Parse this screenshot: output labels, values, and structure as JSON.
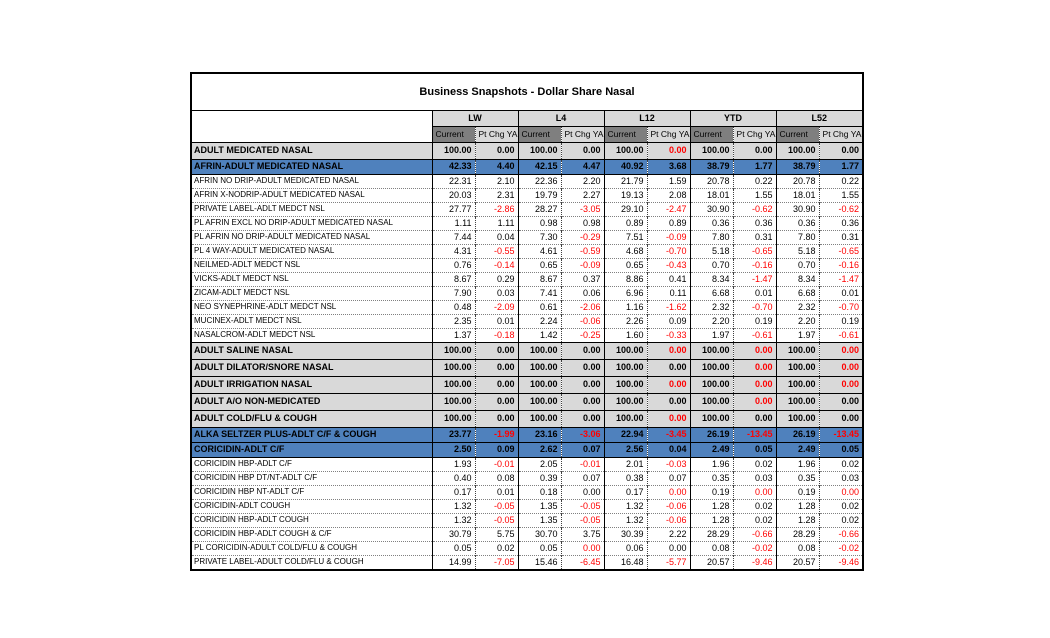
{
  "title": "Business Snapshots - Dollar Share Nasal",
  "periods": [
    "LW",
    "L4",
    "L12",
    "YTD",
    "L52"
  ],
  "subheaders": {
    "current": "Current",
    "ptchg": "Pt Chg YA"
  },
  "colors": {
    "highlight_row": "#4f81bd",
    "section_row": "#d9d9d9",
    "header_group_bg": "#d9d9d9",
    "header_current_bg": "#7f7f7f",
    "negative": "#ff0000"
  },
  "rows": [
    {
      "label": "ADULT MEDICATED NASAL",
      "style": "section",
      "values": [
        "100.00",
        "0.00",
        "100.00",
        "0.00",
        "100.00",
        "0.00",
        "100.00",
        "0.00",
        "100.00",
        "0.00"
      ],
      "red": [
        5
      ]
    },
    {
      "label": "AFRIN-ADULT MEDICATED NASAL",
      "style": "highlight",
      "values": [
        "42.33",
        "4.40",
        "42.15",
        "4.47",
        "40.92",
        "3.68",
        "38.79",
        "1.77",
        "38.79",
        "1.77"
      ],
      "red": []
    },
    {
      "label": "AFRIN NO DRIP-ADULT MEDICATED NASAL",
      "style": "normal",
      "values": [
        "22.31",
        "2.10",
        "22.36",
        "2.20",
        "21.79",
        "1.59",
        "20.78",
        "0.22",
        "20.78",
        "0.22"
      ],
      "red": []
    },
    {
      "label": "AFRIN X-NODRIP-ADULT MEDICATED NASAL",
      "style": "normal",
      "values": [
        "20.03",
        "2.31",
        "19.79",
        "2.27",
        "19.13",
        "2.08",
        "18.01",
        "1.55",
        "18.01",
        "1.55"
      ],
      "red": []
    },
    {
      "label": "PRIVATE LABEL-ADLT MEDCT NSL",
      "style": "normal",
      "values": [
        "27.77",
        "-2.86",
        "28.27",
        "-3.05",
        "29.10",
        "-2.47",
        "30.90",
        "-0.62",
        "30.90",
        "-0.62"
      ],
      "red": [
        1,
        3,
        5,
        7,
        9
      ]
    },
    {
      "label": "PL AFRIN EXCL NO DRIP-ADULT MEDICATED NASAL",
      "style": "normal",
      "values": [
        "1.11",
        "1.11",
        "0.98",
        "0.98",
        "0.89",
        "0.89",
        "0.36",
        "0.36",
        "0.36",
        "0.36"
      ],
      "red": []
    },
    {
      "label": "PL AFRIN NO DRIP-ADULT MEDICATED NASAL",
      "style": "normal",
      "values": [
        "7.44",
        "0.04",
        "7.30",
        "-0.29",
        "7.51",
        "-0.09",
        "7.80",
        "0.31",
        "7.80",
        "0.31"
      ],
      "red": [
        3,
        5
      ]
    },
    {
      "label": "PL 4 WAY-ADULT MEDICATED NASAL",
      "style": "normal",
      "values": [
        "4.31",
        "-0.55",
        "4.61",
        "-0.59",
        "4.68",
        "-0.70",
        "5.18",
        "-0.65",
        "5.18",
        "-0.65"
      ],
      "red": [
        1,
        3,
        5,
        7,
        9
      ]
    },
    {
      "label": "NEILMED-ADLT MEDCT NSL",
      "style": "normal",
      "values": [
        "0.76",
        "-0.14",
        "0.65",
        "-0.09",
        "0.65",
        "-0.43",
        "0.70",
        "-0.16",
        "0.70",
        "-0.16"
      ],
      "red": [
        1,
        3,
        5,
        7,
        9
      ]
    },
    {
      "label": "VICKS-ADLT MEDCT NSL",
      "style": "normal",
      "values": [
        "8.67",
        "0.29",
        "8.67",
        "0.37",
        "8.86",
        "0.41",
        "8.34",
        "-1.47",
        "8.34",
        "-1.47"
      ],
      "red": [
        7,
        9
      ]
    },
    {
      "label": "ZICAM-ADLT MEDCT NSL",
      "style": "normal",
      "values": [
        "7.90",
        "0.03",
        "7.41",
        "0.06",
        "6.96",
        "0.11",
        "6.68",
        "0.01",
        "6.68",
        "0.01"
      ],
      "red": []
    },
    {
      "label": "NEO SYNEPHRINE-ADLT MEDCT NSL",
      "style": "normal",
      "values": [
        "0.48",
        "-2.09",
        "0.61",
        "-2.06",
        "1.16",
        "-1.62",
        "2.32",
        "-0.70",
        "2.32",
        "-0.70"
      ],
      "red": [
        1,
        3,
        5,
        7,
        9
      ]
    },
    {
      "label": "MUCINEX-ADLT MEDCT NSL",
      "style": "normal",
      "values": [
        "2.35",
        "0.01",
        "2.24",
        "-0.06",
        "2.26",
        "0.09",
        "2.20",
        "0.19",
        "2.20",
        "0.19"
      ],
      "red": [
        3
      ]
    },
    {
      "label": "NASALCROM-ADLT MEDCT NSL",
      "style": "normal",
      "values": [
        "1.37",
        "-0.18",
        "1.42",
        "-0.25",
        "1.60",
        "-0.33",
        "1.97",
        "-0.61",
        "1.97",
        "-0.61"
      ],
      "red": [
        1,
        3,
        5,
        7,
        9
      ]
    },
    {
      "label": "ADULT SALINE NASAL",
      "style": "section",
      "values": [
        "100.00",
        "0.00",
        "100.00",
        "0.00",
        "100.00",
        "0.00",
        "100.00",
        "0.00",
        "100.00",
        "0.00"
      ],
      "red": [
        5,
        7,
        9
      ]
    },
    {
      "label": "ADULT DILATOR/SNORE NASAL",
      "style": "section",
      "values": [
        "100.00",
        "0.00",
        "100.00",
        "0.00",
        "100.00",
        "0.00",
        "100.00",
        "0.00",
        "100.00",
        "0.00"
      ],
      "red": [
        7,
        9
      ]
    },
    {
      "label": "ADULT IRRIGATION NASAL",
      "style": "section",
      "values": [
        "100.00",
        "0.00",
        "100.00",
        "0.00",
        "100.00",
        "0.00",
        "100.00",
        "0.00",
        "100.00",
        "0.00"
      ],
      "red": [
        5,
        7,
        9
      ]
    },
    {
      "label": "ADULT A/O NON-MEDICATED",
      "style": "section",
      "values": [
        "100.00",
        "0.00",
        "100.00",
        "0.00",
        "100.00",
        "0.00",
        "100.00",
        "0.00",
        "100.00",
        "0.00"
      ],
      "red": [
        7
      ]
    },
    {
      "label": "ADULT COLD/FLU & COUGH",
      "style": "section",
      "values": [
        "100.00",
        "0.00",
        "100.00",
        "0.00",
        "100.00",
        "0.00",
        "100.00",
        "0.00",
        "100.00",
        "0.00"
      ],
      "red": [
        5
      ]
    },
    {
      "label": "ALKA SELTZER PLUS-ADLT C/F & COUGH",
      "style": "highlight",
      "values": [
        "23.77",
        "-1.99",
        "23.16",
        "-3.06",
        "22.94",
        "-3.45",
        "26.19",
        "-13.45",
        "26.19",
        "-13.45"
      ],
      "red": [
        1,
        3,
        5,
        7,
        9
      ]
    },
    {
      "label": "CORICIDIN-ADLT C/F",
      "style": "highlight",
      "values": [
        "2.50",
        "0.09",
        "2.62",
        "0.07",
        "2.56",
        "0.04",
        "2.49",
        "0.05",
        "2.49",
        "0.05"
      ],
      "red": []
    },
    {
      "label": "CORICIDIN HBP-ADLT C/F",
      "style": "normal",
      "values": [
        "1.93",
        "-0.01",
        "2.05",
        "-0.01",
        "2.01",
        "-0.03",
        "1.96",
        "0.02",
        "1.96",
        "0.02"
      ],
      "red": [
        1,
        3,
        5
      ]
    },
    {
      "label": "CORICIDIN HBP DT/NT-ADLT C/F",
      "style": "normal",
      "values": [
        "0.40",
        "0.08",
        "0.39",
        "0.07",
        "0.38",
        "0.07",
        "0.35",
        "0.03",
        "0.35",
        "0.03"
      ],
      "red": []
    },
    {
      "label": "CORICIDIN HBP NT-ADLT C/F",
      "style": "normal",
      "values": [
        "0.17",
        "0.01",
        "0.18",
        "0.00",
        "0.17",
        "0.00",
        "0.19",
        "0.00",
        "0.19",
        "0.00"
      ],
      "red": [
        5,
        7,
        9
      ]
    },
    {
      "label": "CORICIDIN-ADLT COUGH",
      "style": "normal",
      "values": [
        "1.32",
        "-0.05",
        "1.35",
        "-0.05",
        "1.32",
        "-0.06",
        "1.28",
        "0.02",
        "1.28",
        "0.02"
      ],
      "red": [
        1,
        3,
        5
      ]
    },
    {
      "label": "CORICIDIN HBP-ADLT COUGH",
      "style": "normal",
      "values": [
        "1.32",
        "-0.05",
        "1.35",
        "-0.05",
        "1.32",
        "-0.06",
        "1.28",
        "0.02",
        "1.28",
        "0.02"
      ],
      "red": [
        1,
        3,
        5
      ]
    },
    {
      "label": "CORICIDIN HBP-ADLT COUGH & C/F",
      "style": "normal",
      "values": [
        "30.79",
        "5.75",
        "30.70",
        "3.75",
        "30.39",
        "2.22",
        "28.29",
        "-0.66",
        "28.29",
        "-0.66"
      ],
      "red": [
        7,
        9
      ]
    },
    {
      "label": "PL CORICIDIN-ADULT COLD/FLU & COUGH",
      "style": "normal",
      "values": [
        "0.05",
        "0.02",
        "0.05",
        "0.00",
        "0.06",
        "0.00",
        "0.08",
        "-0.02",
        "0.08",
        "-0.02"
      ],
      "red": [
        3,
        7,
        9
      ]
    },
    {
      "label": "PRIVATE LABEL-ADULT COLD/FLU & COUGH",
      "style": "normal",
      "values": [
        "14.99",
        "-7.05",
        "15.46",
        "-6.45",
        "16.48",
        "-5.77",
        "20.57",
        "-9.46",
        "20.57",
        "-9.46"
      ],
      "red": [
        1,
        3,
        5,
        7,
        9
      ]
    }
  ]
}
